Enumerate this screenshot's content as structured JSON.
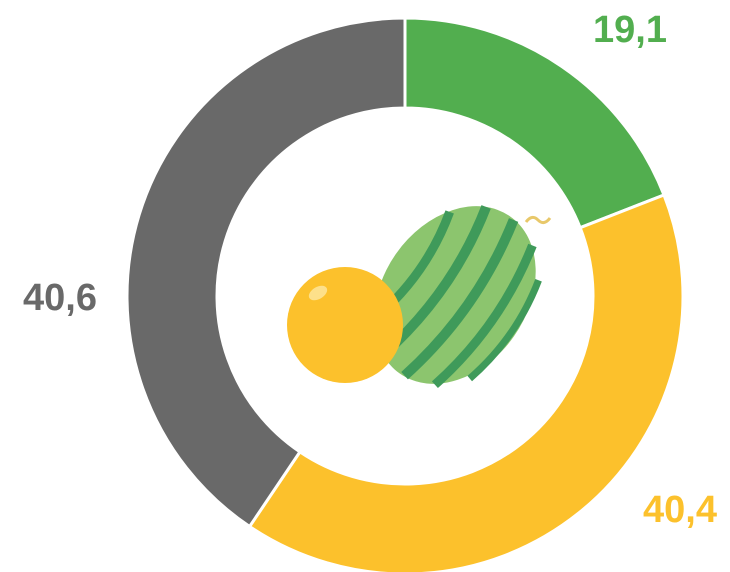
{
  "chart_data": {
    "type": "donut",
    "values": [
      19.1,
      40.4,
      40.6
    ],
    "value_labels": [
      "19,1",
      "40,4",
      "40,6"
    ],
    "colors": [
      "#52ae4f",
      "#fcc12c",
      "#696969"
    ]
  }
}
